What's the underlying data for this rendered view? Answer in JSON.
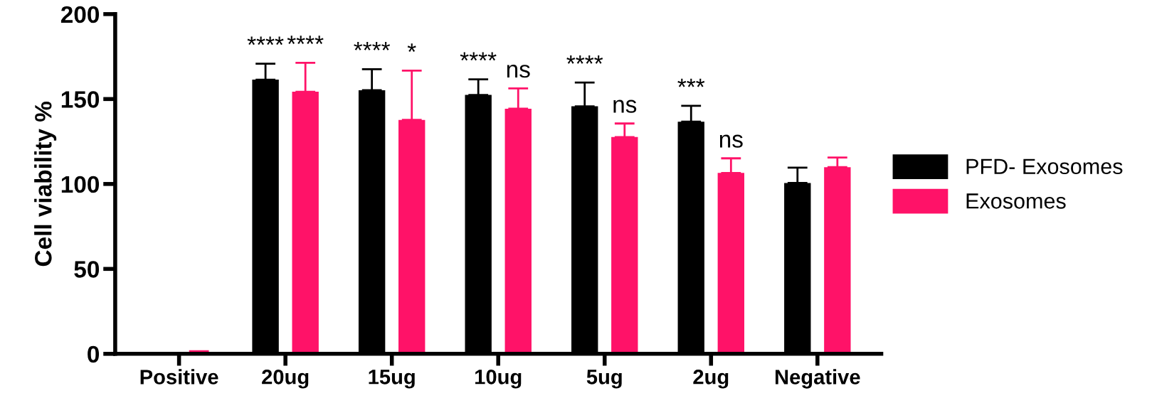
{
  "chart_data": {
    "type": "bar",
    "ylabel": "Cell viability %",
    "categories": [
      "Positive",
      "20ug",
      "15ug",
      "10ug",
      "5ug",
      "2ug",
      "Negative"
    ],
    "series": [
      {
        "name": "PFD- Exosomes",
        "color": "#000000",
        "values": [
          0,
          161.4,
          155.2,
          152.4,
          145.7,
          136.7,
          100.6
        ],
        "errors": [
          null,
          [
            161.4,
            170.8
          ],
          [
            155.2,
            167.6
          ],
          [
            152.4,
            161.6
          ],
          [
            145.7,
            159.7
          ],
          [
            136.7,
            146
          ],
          [
            100.6,
            109.6
          ]
        ],
        "value_labels": [
          null,
          "****",
          "****",
          "****",
          "****",
          "***",
          null
        ]
      },
      {
        "name": "Exosomes",
        "color": "#ff1268",
        "values": [
          0.5,
          154.3,
          137.7,
          144.3,
          127.6,
          106.5,
          109.9
        ],
        "errors": [
          [
            0.5,
            1.5
          ],
          [
            154.3,
            171.3
          ],
          [
            137.7,
            166.7
          ],
          [
            144.3,
            156.3
          ],
          [
            127.6,
            135.6
          ],
          [
            106.5,
            115.1
          ],
          [
            109.9,
            115.6
          ]
        ],
        "value_labels": [
          null,
          "****",
          "*",
          "ns",
          "ns",
          "ns",
          null
        ]
      }
    ],
    "ylim": [
      0,
      200
    ],
    "yticks": [
      0,
      50,
      100,
      150,
      200
    ],
    "grid": false,
    "legend": "right"
  }
}
